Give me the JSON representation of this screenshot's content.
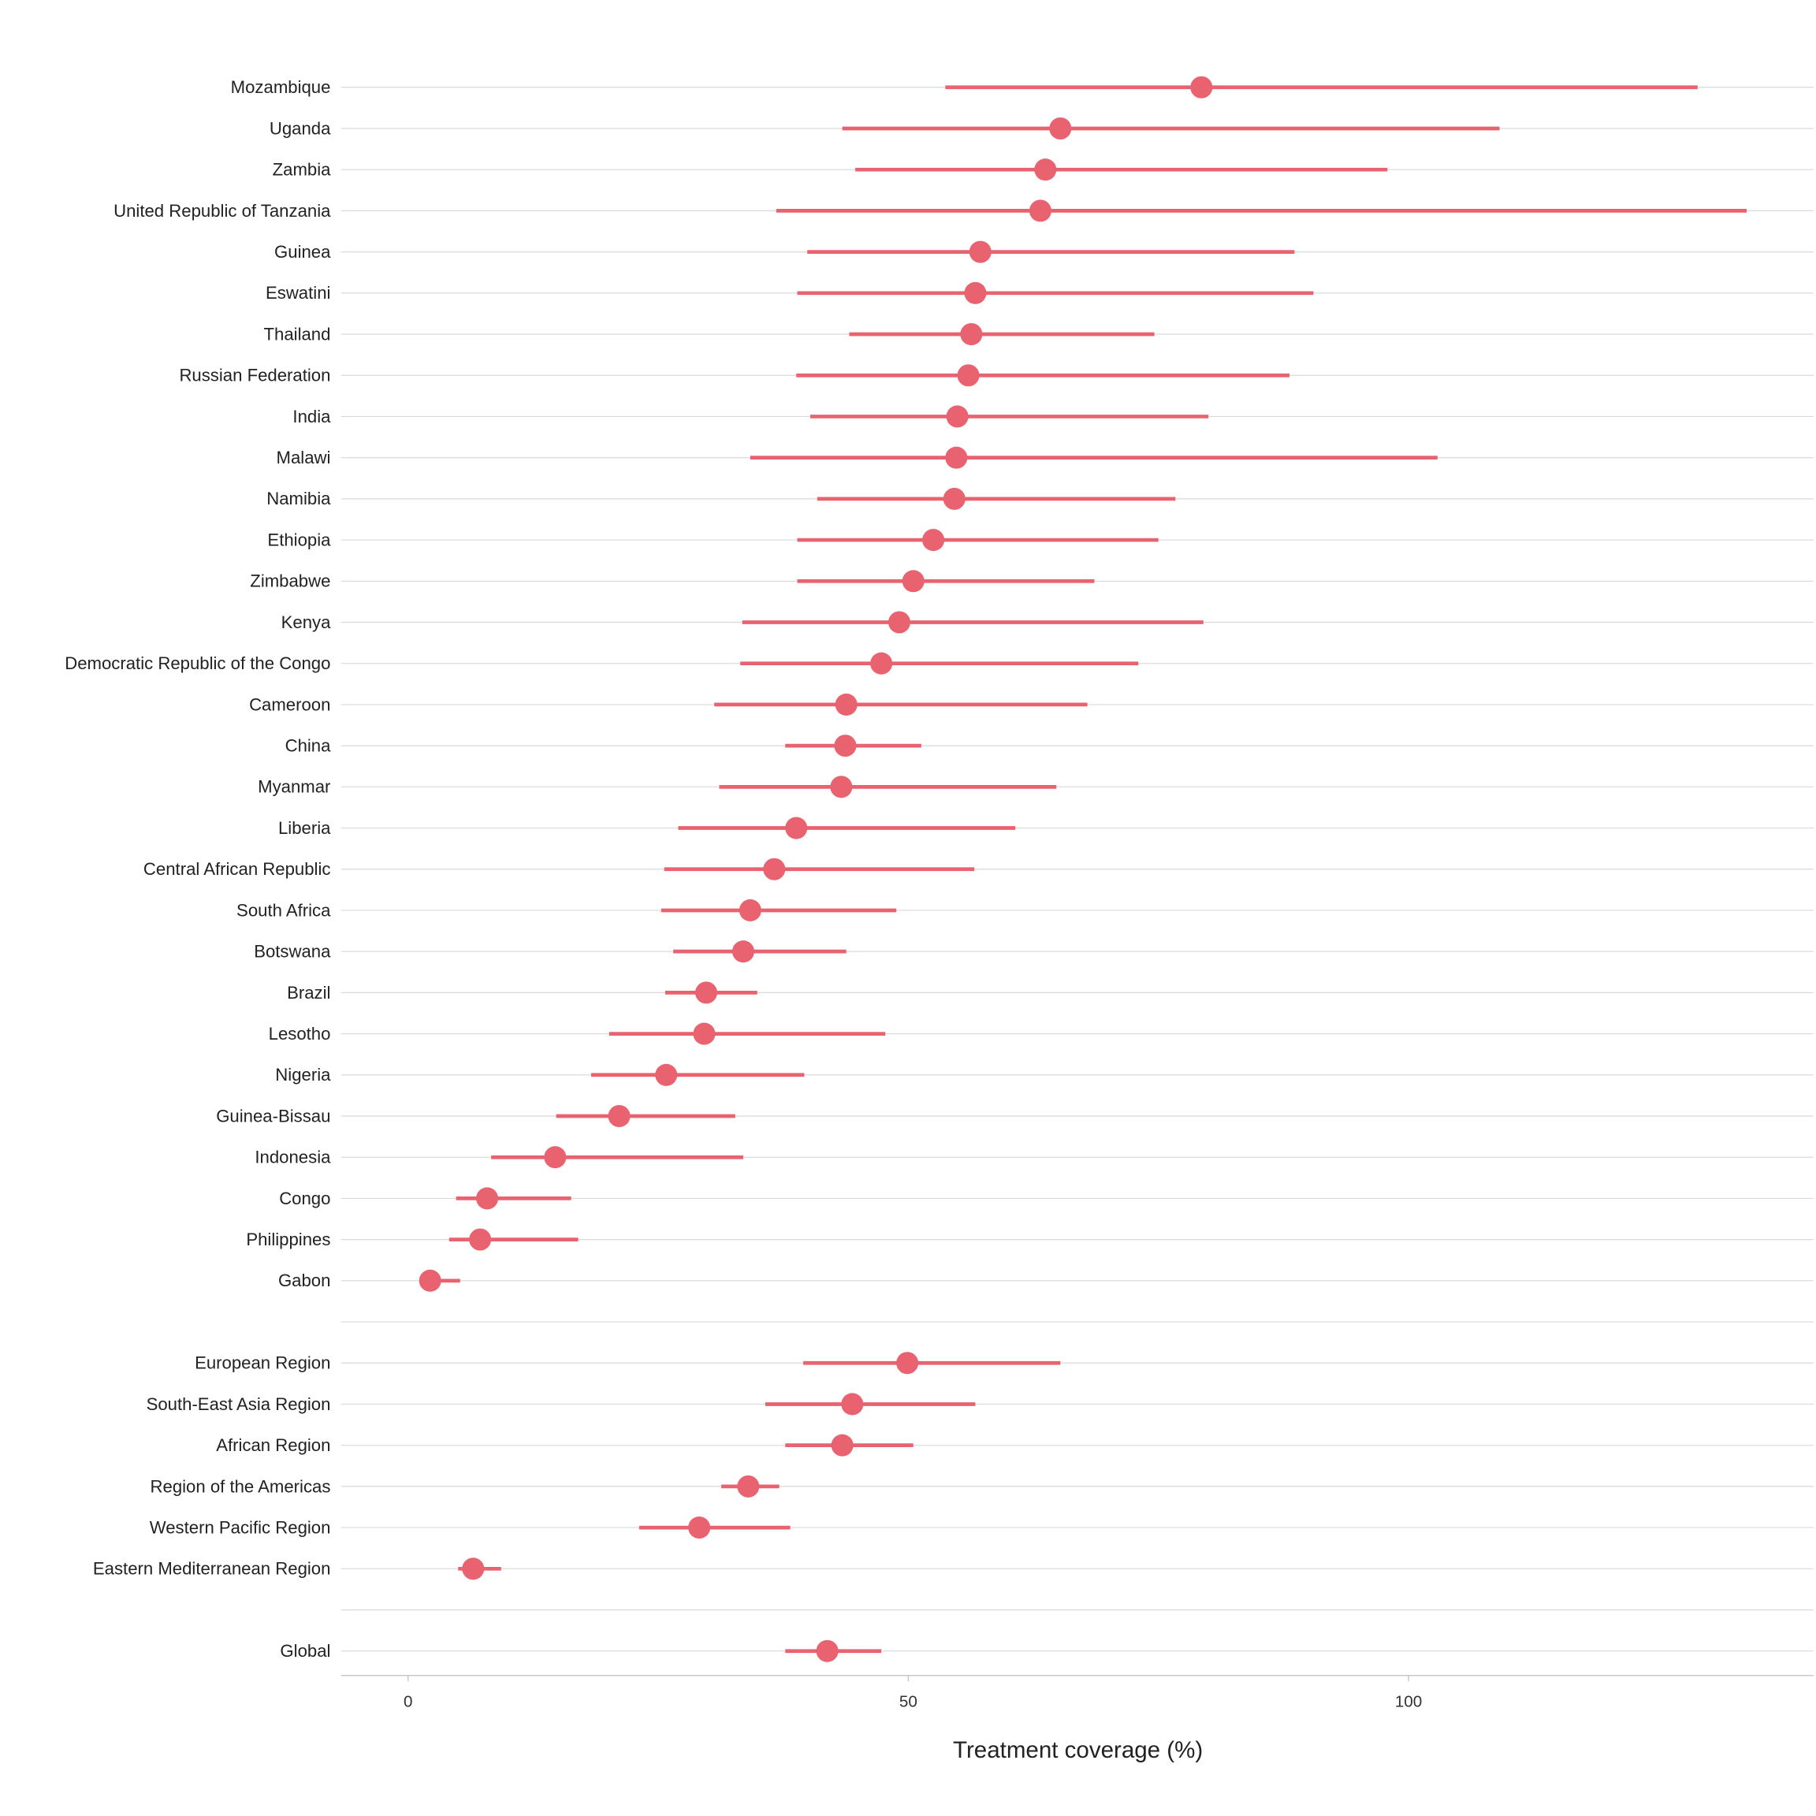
{
  "chart_data": {
    "type": "dot-interval",
    "title": "",
    "xlabel": "Treatment coverage (%)",
    "ylabel": "",
    "xlim": [
      -6.7,
      140.5
    ],
    "xticks": [
      0,
      50,
      100
    ],
    "grid": true,
    "color": "#e8636f",
    "groups": [
      {
        "rows": [
          {
            "label": "Mozambique",
            "value": 79.3,
            "low": 53.7,
            "high": 128.9
          },
          {
            "label": "Uganda",
            "value": 65.2,
            "low": 43.4,
            "high": 109.1
          },
          {
            "label": "Zambia",
            "value": 63.7,
            "low": 44.7,
            "high": 97.9
          },
          {
            "label": "United Republic of Tanzania",
            "value": 63.2,
            "low": 36.8,
            "high": 133.8
          },
          {
            "label": "Guinea",
            "value": 57.2,
            "low": 39.9,
            "high": 88.6
          },
          {
            "label": "Eswatini",
            "value": 56.7,
            "low": 38.9,
            "high": 90.5
          },
          {
            "label": "Thailand",
            "value": 56.3,
            "low": 44.1,
            "high": 74.6
          },
          {
            "label": "Russian Federation",
            "value": 56.0,
            "low": 38.8,
            "high": 88.1
          },
          {
            "label": "India",
            "value": 54.9,
            "low": 40.2,
            "high": 80.0
          },
          {
            "label": "Malawi",
            "value": 54.8,
            "low": 34.2,
            "high": 102.9
          },
          {
            "label": "Namibia",
            "value": 54.6,
            "low": 40.9,
            "high": 76.7
          },
          {
            "label": "Ethiopia",
            "value": 52.5,
            "low": 38.9,
            "high": 75.0
          },
          {
            "label": "Zimbabwe",
            "value": 50.5,
            "low": 38.9,
            "high": 68.6
          },
          {
            "label": "Kenya",
            "value": 49.1,
            "low": 33.4,
            "high": 79.5
          },
          {
            "label": "Democratic Republic of the Congo",
            "value": 47.3,
            "low": 33.2,
            "high": 73.0
          },
          {
            "label": "Cameroon",
            "value": 43.8,
            "low": 30.6,
            "high": 67.9
          },
          {
            "label": "China",
            "value": 43.7,
            "low": 37.7,
            "high": 51.3
          },
          {
            "label": "Myanmar",
            "value": 43.3,
            "low": 31.1,
            "high": 64.8
          },
          {
            "label": "Liberia",
            "value": 38.8,
            "low": 27.0,
            "high": 60.7
          },
          {
            "label": "Central African Republic",
            "value": 36.6,
            "low": 25.6,
            "high": 56.6
          },
          {
            "label": "South Africa",
            "value": 34.2,
            "low": 25.3,
            "high": 48.8
          },
          {
            "label": "Botswana",
            "value": 33.5,
            "low": 26.5,
            "high": 43.8
          },
          {
            "label": "Brazil",
            "value": 29.8,
            "low": 25.7,
            "high": 34.9
          },
          {
            "label": "Lesotho",
            "value": 29.6,
            "low": 20.1,
            "high": 47.7
          },
          {
            "label": "Nigeria",
            "value": 25.8,
            "low": 18.3,
            "high": 39.6
          },
          {
            "label": "Guinea-Bissau",
            "value": 21.1,
            "low": 14.8,
            "high": 32.7
          },
          {
            "label": "Indonesia",
            "value": 14.7,
            "low": 8.3,
            "high": 33.5
          },
          {
            "label": "Congo",
            "value": 7.9,
            "low": 4.8,
            "high": 16.3
          },
          {
            "label": "Philippines",
            "value": 7.2,
            "low": 4.1,
            "high": 17.0
          },
          {
            "label": "Gabon",
            "value": 2.2,
            "low": 1.3,
            "high": 5.2
          }
        ]
      },
      {
        "rows": [
          {
            "label": "European Region",
            "value": 49.9,
            "low": 39.5,
            "high": 65.2
          },
          {
            "label": "South-East Asia Region",
            "value": 44.4,
            "low": 35.7,
            "high": 56.7
          },
          {
            "label": "African Region",
            "value": 43.4,
            "low": 37.7,
            "high": 50.5
          },
          {
            "label": "Region of the Americas",
            "value": 34.0,
            "low": 31.3,
            "high": 37.1
          },
          {
            "label": "Western Pacific Region",
            "value": 29.1,
            "low": 23.1,
            "high": 38.2
          },
          {
            "label": "Eastern Mediterranean Region",
            "value": 6.5,
            "low": 5.0,
            "high": 9.3
          }
        ]
      },
      {
        "rows": [
          {
            "label": "Global",
            "value": 41.9,
            "low": 37.7,
            "high": 47.3
          }
        ]
      }
    ]
  }
}
